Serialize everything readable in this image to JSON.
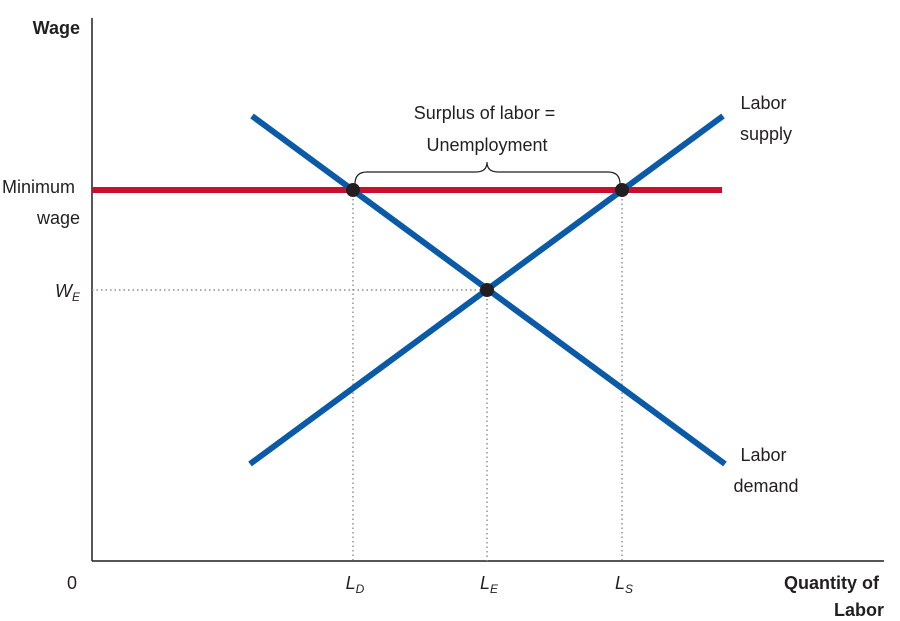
{
  "chart_data": {
    "type": "line",
    "title": "",
    "ylabel": "Wage",
    "xlabel": "Quantity of Labor",
    "xlabel_lines": [
      "Quantity of",
      "Labor"
    ],
    "origin_label": "0",
    "grid": false,
    "legend": "none",
    "x_ticks": [
      {
        "id": "ld",
        "main": "L",
        "sub": "D",
        "value": 3.5
      },
      {
        "id": "le",
        "main": "L",
        "sub": "E",
        "value": 5
      },
      {
        "id": "ls",
        "main": "L",
        "sub": "S",
        "value": 6.5
      }
    ],
    "y_ticks": [
      {
        "id": "min",
        "lines": [
          "Minimum",
          "wage"
        ],
        "value": 6.7
      },
      {
        "id": "we",
        "main": "W",
        "sub": "E",
        "value": 5.5
      }
    ],
    "series": [
      {
        "id": "supply",
        "label_lines": [
          "Labor",
          "supply"
        ],
        "color": "#0a5aa8",
        "x": [
          1.8,
          7.0
        ],
        "y": [
          1.2,
          8.6
        ]
      },
      {
        "id": "demand",
        "label_lines": [
          "Labor",
          "demand"
        ],
        "color": "#0a5aa8",
        "x": [
          1.8,
          7.0
        ],
        "y": [
          8.6,
          1.2
        ]
      },
      {
        "id": "min_wage",
        "color": "#c8102e",
        "x": [
          0,
          7.0
        ],
        "y": [
          6.7,
          6.7
        ]
      }
    ],
    "points": [
      {
        "id": "ld-point",
        "x": 3.5,
        "y": 6.7
      },
      {
        "id": "eq-point",
        "x": 5,
        "y": 5.5
      },
      {
        "id": "ls-point",
        "x": 6.5,
        "y": 6.7
      }
    ],
    "annotations": [
      {
        "id": "surplus",
        "lines": [
          "Surplus of labor =",
          "Unemployment"
        ],
        "from_x": 3.5,
        "to_x": 6.5,
        "at_y": 6.7
      }
    ]
  }
}
